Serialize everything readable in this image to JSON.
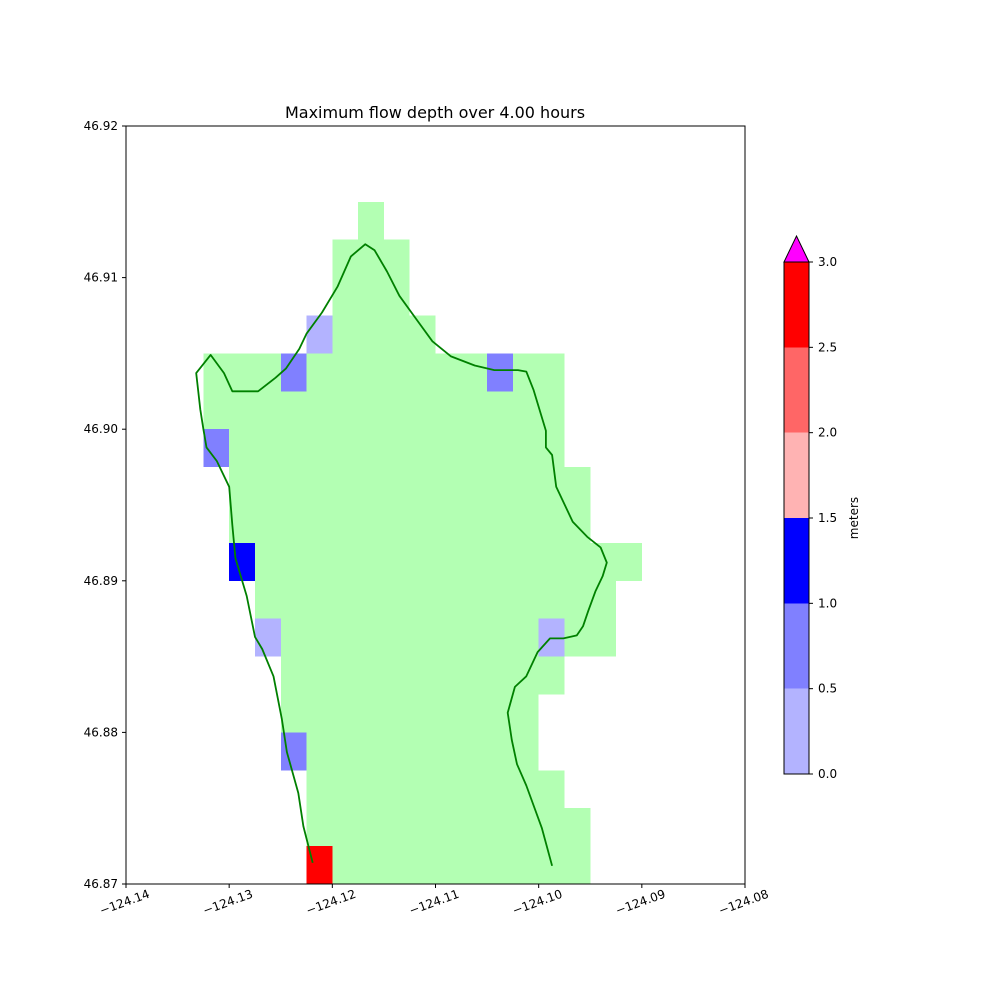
{
  "chart_data": {
    "type": "heatmap",
    "title": "Maximum flow depth over 4.00 hours",
    "xlim": [
      -124.14,
      -124.08
    ],
    "ylim": [
      46.87,
      46.92
    ],
    "x_ticks": [
      -124.14,
      -124.13,
      -124.12,
      -124.11,
      -124.1,
      -124.09,
      -124.08
    ],
    "x_tick_labels": [
      "−124.14",
      "−124.13",
      "−124.12",
      "−124.11",
      "−124.10",
      "−124.09",
      "−124.08"
    ],
    "y_ticks": [
      46.87,
      46.88,
      46.89,
      46.9,
      46.91,
      46.92
    ],
    "y_tick_labels": [
      "46.87",
      "46.88",
      "46.89",
      "46.90",
      "46.91",
      "46.92"
    ],
    "grid": false,
    "cell_size_lon": 0.0025,
    "cell_size_lat": 0.0025,
    "land_color": "#b3ffb3",
    "land_rows": [
      {
        "lat": 46.87,
        "lon_min": -124.1225,
        "lon_max": -124.0975
      },
      {
        "lat": 46.8725,
        "lon_min": -124.1225,
        "lon_max": -124.0975
      },
      {
        "lat": 46.875,
        "lon_min": -124.1225,
        "lon_max": -124.1
      },
      {
        "lat": 46.8775,
        "lon_min": -124.1225,
        "lon_max": -124.1025
      },
      {
        "lat": 46.88,
        "lon_min": -124.125,
        "lon_max": -124.1025
      },
      {
        "lat": 46.8825,
        "lon_min": -124.125,
        "lon_max": -124.1
      },
      {
        "lat": 46.885,
        "lon_min": -124.1275,
        "lon_max": -124.095
      },
      {
        "lat": 46.8875,
        "lon_min": -124.1275,
        "lon_max": -124.095
      },
      {
        "lat": 46.89,
        "lon_min": -124.13,
        "lon_max": -124.0925
      },
      {
        "lat": 46.8925,
        "lon_min": -124.13,
        "lon_max": -124.0975
      },
      {
        "lat": 46.895,
        "lon_min": -124.13,
        "lon_max": -124.0975
      },
      {
        "lat": 46.8975,
        "lon_min": -124.1325,
        "lon_max": -124.1
      },
      {
        "lat": 46.9,
        "lon_min": -124.1325,
        "lon_max": -124.1
      },
      {
        "lat": 46.9025,
        "lon_min": -124.1325,
        "lon_max": -124.1
      }
    ],
    "land_extra_cells": [
      {
        "lon": -124.1325,
        "lat": 46.9025
      },
      {
        "lon": -124.115,
        "lat": 46.9025
      },
      {
        "lon": -124.1125,
        "lat": 46.9025
      },
      {
        "lon": -124.11,
        "lat": 46.9025
      },
      {
        "lon": -124.1075,
        "lat": 46.9025
      },
      {
        "lon": -124.105,
        "lat": 46.9025
      },
      {
        "lon": -124.1025,
        "lat": 46.9025
      },
      {
        "lon": -124.12,
        "lat": 46.905
      },
      {
        "lon": -124.1175,
        "lat": 46.905
      },
      {
        "lon": -124.115,
        "lat": 46.905
      },
      {
        "lon": -124.1125,
        "lat": 46.905
      },
      {
        "lon": -124.12,
        "lat": 46.9075
      },
      {
        "lon": -124.1175,
        "lat": 46.9075
      },
      {
        "lon": -124.115,
        "lat": 46.9075
      },
      {
        "lon": -124.12,
        "lat": 46.91
      },
      {
        "lon": -124.1175,
        "lat": 46.91
      },
      {
        "lon": -124.115,
        "lat": 46.91
      },
      {
        "lon": -124.1175,
        "lat": 46.9125
      }
    ],
    "depth_cells": [
      {
        "lon": -124.1225,
        "lat": 46.905,
        "value": 0.3
      },
      {
        "lon": -124.125,
        "lat": 46.9025,
        "value": 0.75
      },
      {
        "lon": -124.105,
        "lat": 46.9025,
        "value": 0.75
      },
      {
        "lon": -124.1325,
        "lat": 46.8975,
        "value": 0.75
      },
      {
        "lon": -124.13,
        "lat": 46.89,
        "value": 1.25
      },
      {
        "lon": -124.1275,
        "lat": 46.885,
        "value": 0.3
      },
      {
        "lon": -124.1,
        "lat": 46.885,
        "value": 0.3
      },
      {
        "lon": -124.125,
        "lat": 46.8775,
        "value": 0.75
      },
      {
        "lon": -124.1225,
        "lat": 46.87,
        "value": 2.75
      }
    ],
    "shoreline_color": "#008000",
    "shoreline": [
      [
        -124.1219,
        46.8714
      ],
      [
        -124.1228,
        46.8738
      ],
      [
        -124.1233,
        46.876
      ],
      [
        -124.1244,
        46.8787
      ],
      [
        -124.1249,
        46.8809
      ],
      [
        -124.1257,
        46.8837
      ],
      [
        -124.1268,
        46.8855
      ],
      [
        -124.1275,
        46.8863
      ],
      [
        -124.1283,
        46.889
      ],
      [
        -124.1294,
        46.8915
      ],
      [
        -124.1297,
        46.8937
      ],
      [
        -124.13,
        46.8962
      ],
      [
        -124.1312,
        46.8979
      ],
      [
        -124.1322,
        46.8988
      ],
      [
        -124.1325,
        46.9
      ],
      [
        -124.1328,
        46.9013
      ],
      [
        -124.1332,
        46.9037
      ],
      [
        -124.1318,
        46.9049
      ],
      [
        -124.1305,
        46.9037
      ],
      [
        -124.1297,
        46.9025
      ],
      [
        -124.1272,
        46.9025
      ],
      [
        -124.1255,
        46.9034
      ],
      [
        -124.1245,
        46.904
      ],
      [
        -124.1232,
        46.9053
      ],
      [
        -124.1225,
        46.9063
      ],
      [
        -124.121,
        46.9077
      ],
      [
        -124.1195,
        46.9094
      ],
      [
        -124.1182,
        46.9114
      ],
      [
        -124.1168,
        46.9122
      ],
      [
        -124.1159,
        46.9118
      ],
      [
        -124.1147,
        46.9104
      ],
      [
        -124.1135,
        46.9088
      ],
      [
        -124.1118,
        46.9072
      ],
      [
        -124.1103,
        46.9058
      ],
      [
        -124.1085,
        46.9048
      ],
      [
        -124.1062,
        46.9042
      ],
      [
        -124.1043,
        46.9039
      ],
      [
        -124.102,
        46.9039
      ],
      [
        -124.1012,
        46.9038
      ],
      [
        -124.1005,
        46.9026
      ],
      [
        -124.0993,
        46.8999
      ],
      [
        -124.0993,
        46.8988
      ],
      [
        -124.0987,
        46.8983
      ],
      [
        -124.0983,
        46.8962
      ],
      [
        -124.0967,
        46.8939
      ],
      [
        -124.0953,
        46.8929
      ],
      [
        -124.094,
        46.8922
      ],
      [
        -124.0934,
        46.8912
      ],
      [
        -124.0938,
        46.8903
      ],
      [
        -124.0945,
        46.8893
      ],
      [
        -124.0952,
        46.888
      ],
      [
        -124.0957,
        46.887
      ],
      [
        -124.0963,
        46.8864
      ],
      [
        -124.0976,
        46.8862
      ],
      [
        -124.0984,
        46.8862
      ],
      [
        -124.0989,
        46.8862
      ],
      [
        -124.1001,
        46.8853
      ],
      [
        -124.1012,
        46.8837
      ],
      [
        -124.1023,
        46.883
      ],
      [
        -124.103,
        46.8813
      ],
      [
        -124.1026,
        46.8795
      ],
      [
        -124.1021,
        46.8779
      ],
      [
        -124.1012,
        46.8765
      ],
      [
        -124.0997,
        46.8737
      ],
      [
        -124.0987,
        46.8712
      ]
    ],
    "colorbar": {
      "label": "meters",
      "ticks": [
        0.0,
        0.5,
        1.0,
        1.5,
        2.0,
        2.5,
        3.0
      ],
      "tick_labels": [
        "0.0",
        "0.5",
        "1.0",
        "1.5",
        "2.0",
        "2.5",
        "3.0"
      ],
      "bins": [
        {
          "min": 0.0,
          "max": 0.5,
          "color": "#b3b3ff"
        },
        {
          "min": 0.5,
          "max": 1.0,
          "color": "#8080ff"
        },
        {
          "min": 1.0,
          "max": 1.5,
          "color": "#0000ff"
        },
        {
          "min": 1.5,
          "max": 2.0,
          "color": "#ffb3b3"
        },
        {
          "min": 2.0,
          "max": 2.5,
          "color": "#ff6666"
        },
        {
          "min": 2.5,
          "max": 3.0,
          "color": "#ff0000"
        }
      ],
      "over_color": "#ff00ff"
    }
  }
}
